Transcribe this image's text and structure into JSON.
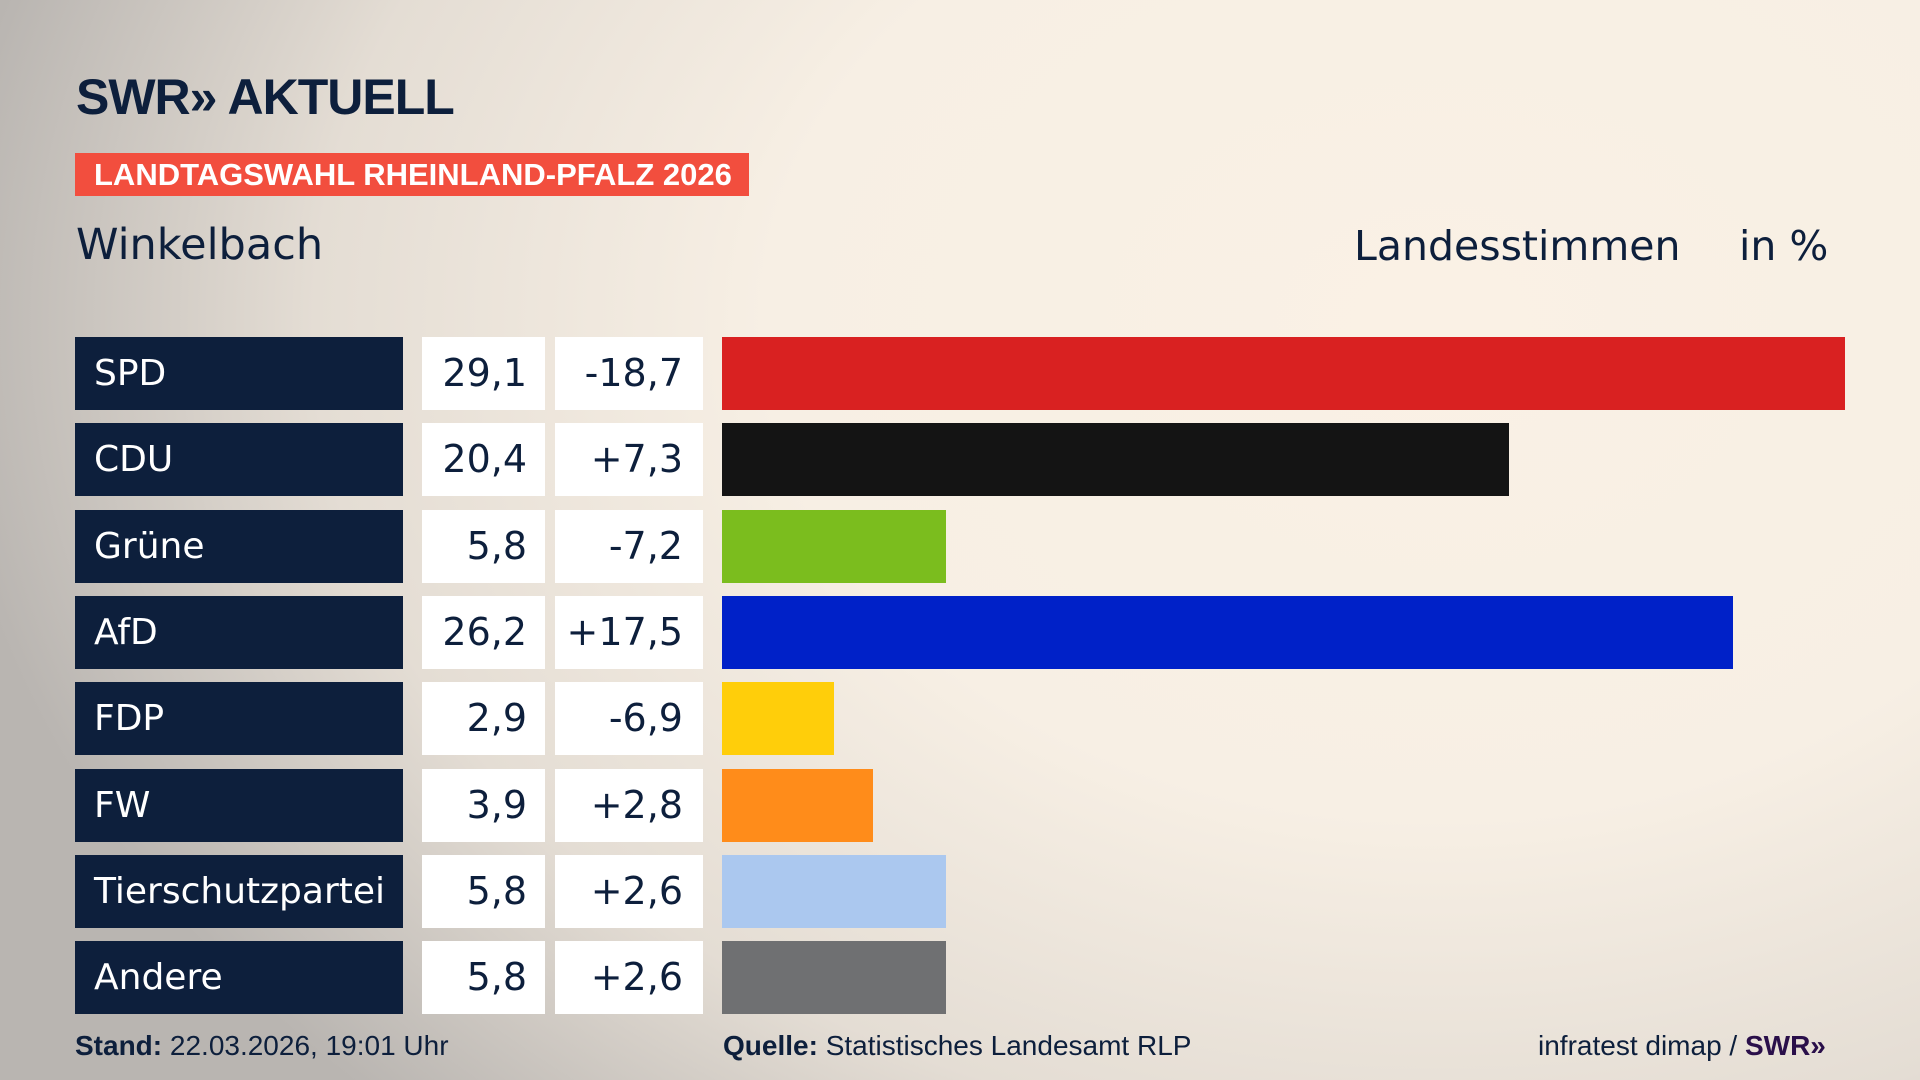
{
  "header": {
    "logo": "SWR» AKTUELL",
    "banner": "LANDTAGSWAHL RHEINLAND-PFALZ 2026",
    "region": "Winkelbach",
    "vote_type": "Landesstimmen",
    "unit": "in %"
  },
  "chart_data": {
    "type": "bar",
    "orientation": "horizontal",
    "categories": [
      "SPD",
      "CDU",
      "Grüne",
      "AfD",
      "FDP",
      "FW",
      "Tierschutzpartei",
      "Andere"
    ],
    "values": [
      29.1,
      20.4,
      5.8,
      26.2,
      2.9,
      3.9,
      5.8,
      5.8
    ],
    "value_labels": [
      "29,1",
      "20,4",
      "5,8",
      "26,2",
      "2,9",
      "3,9",
      "5,8",
      "5,8"
    ],
    "changes": [
      "-18,7",
      "+7,3",
      "-7,2",
      "+17,5",
      "-6,9",
      "+2,8",
      "+2,6",
      "+2,6"
    ],
    "colors": [
      "#d92121",
      "#141414",
      "#7bbd1e",
      "#0021c8",
      "#ffce0a",
      "#ff8c1a",
      "#abc8ef",
      "#6f7072"
    ],
    "grid": false
  },
  "footer": {
    "stand_label": "Stand:",
    "stand_value": "22.03.2026, 19:01 Uhr",
    "source_label": "Quelle:",
    "source_value": "Statistisches Landesamt RLP",
    "credit": "infratest dimap /",
    "credit_logo": "SWR»"
  }
}
